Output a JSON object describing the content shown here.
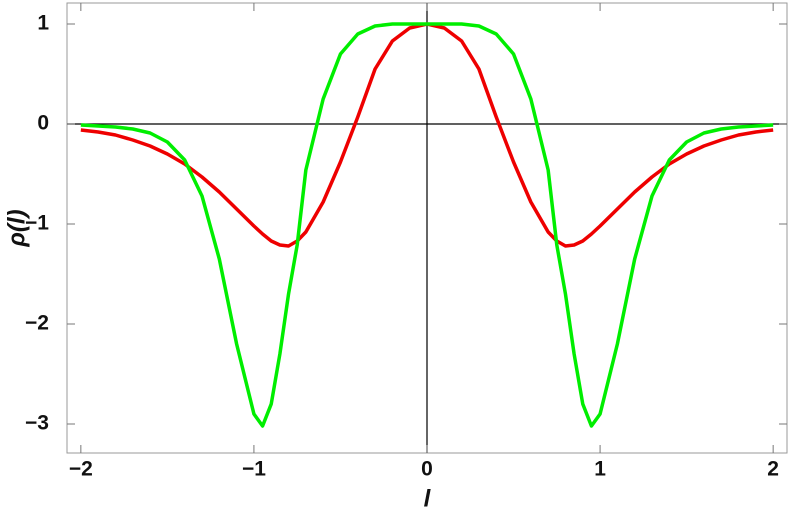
{
  "chart_data": {
    "type": "line",
    "xlabel": "l",
    "ylabel": "ρ(l)",
    "x": [
      -2,
      -1.9,
      -1.8,
      -1.7,
      -1.6,
      -1.5,
      -1.4,
      -1.3,
      -1.2,
      -1.1,
      -1,
      -0.95,
      -0.9,
      -0.85,
      -0.8,
      -0.75,
      -0.7,
      -0.6,
      -0.5,
      -0.4,
      -0.3,
      -0.2,
      -0.1,
      0,
      0.1,
      0.2,
      0.3,
      0.4,
      0.5,
      0.6,
      0.7,
      0.75,
      0.8,
      0.85,
      0.9,
      0.95,
      1,
      1.1,
      1.2,
      1.3,
      1.4,
      1.5,
      1.6,
      1.7,
      1.8,
      1.9,
      2
    ],
    "series": [
      {
        "color": "#ee0000",
        "values": [
          -0.06,
          -0.08,
          -0.11,
          -0.16,
          -0.22,
          -0.3,
          -0.4,
          -0.53,
          -0.68,
          -0.85,
          -1.02,
          -1.1,
          -1.17,
          -1.21,
          -1.22,
          -1.17,
          -1.08,
          -0.78,
          -0.38,
          0.07,
          0.55,
          0.83,
          0.96,
          1,
          0.96,
          0.83,
          0.55,
          0.07,
          -0.38,
          -0.78,
          -1.08,
          -1.17,
          -1.22,
          -1.21,
          -1.17,
          -1.1,
          -1.02,
          -0.85,
          -0.68,
          -0.53,
          -0.4,
          -0.3,
          -0.22,
          -0.16,
          -0.11,
          -0.08,
          -0.06
        ]
      },
      {
        "color": "#00ee00",
        "values": [
          -0.01,
          -0.02,
          -0.03,
          -0.05,
          -0.09,
          -0.18,
          -0.36,
          -0.72,
          -1.35,
          -2.2,
          -2.9,
          -3.02,
          -2.8,
          -2.3,
          -1.7,
          -1.21,
          -0.46,
          0.25,
          0.7,
          0.9,
          0.98,
          1,
          1,
          1,
          1,
          1,
          0.98,
          0.9,
          0.7,
          0.25,
          -0.46,
          -1.21,
          -1.7,
          -2.3,
          -2.8,
          -3.02,
          -2.9,
          -2.2,
          -1.35,
          -0.72,
          -0.36,
          -0.18,
          -0.09,
          -0.05,
          -0.03,
          -0.02,
          -0.01
        ]
      }
    ],
    "xlim": [
      -2.08,
      2.08
    ],
    "ylim": [
      -3.29,
      1.21
    ],
    "xticks": [
      {
        "value": -2,
        "label": "−2"
      },
      {
        "value": -1,
        "label": "−1"
      },
      0,
      1,
      2
    ],
    "yticks": [
      {
        "value": -3,
        "label": "−3"
      },
      {
        "value": -2,
        "label": "−2"
      },
      {
        "value": -1,
        "label": "−1"
      },
      0,
      1
    ]
  }
}
